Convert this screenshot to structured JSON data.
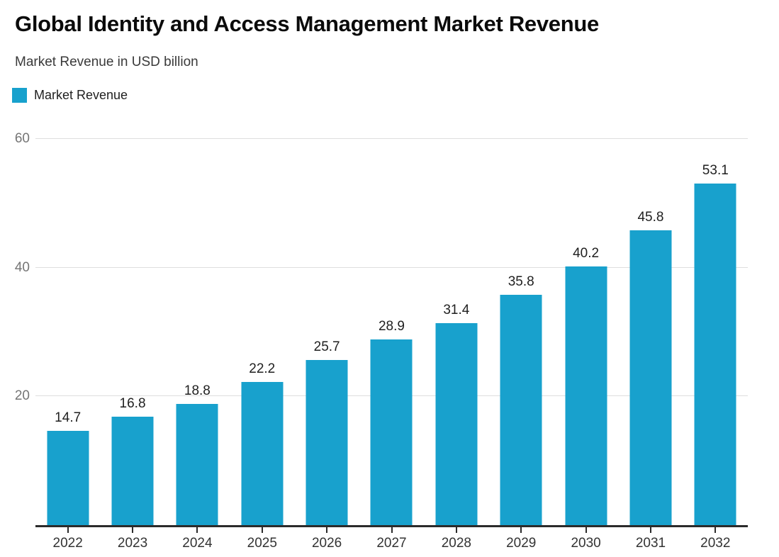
{
  "header": {
    "title": "Global Identity and Access Management Market Revenue",
    "subtitle": "Market Revenue in USD billion"
  },
  "legend": {
    "label": "Market Revenue"
  },
  "colors": {
    "bar": "#18a1cd",
    "gridline": "#dedede",
    "axis_line": "#2b2b2b",
    "y_tick_label": "#757575",
    "x_tick_label": "#333333",
    "value_label": "#1f1f1f",
    "title": "#0b0b0b",
    "subtitle": "#3a3a3a",
    "background": "#ffffff"
  },
  "chart_data": {
    "type": "bar",
    "title": "Global Identity and Access Management Market Revenue",
    "subtitle": "Market Revenue in USD billion",
    "legend_entries": [
      "Market Revenue"
    ],
    "categories": [
      "2022",
      "2023",
      "2024",
      "2025",
      "2026",
      "2027",
      "2028",
      "2029",
      "2030",
      "2031",
      "2032"
    ],
    "values": [
      14.7,
      16.8,
      18.8,
      22.2,
      25.7,
      28.9,
      31.4,
      35.8,
      40.2,
      45.8,
      53.1
    ],
    "value_labels": [
      "14.7",
      "16.8",
      "18.8",
      "22.2",
      "25.7",
      "28.9",
      "31.4",
      "35.8",
      "40.2",
      "45.8",
      "53.1"
    ],
    "xlabel": "",
    "ylabel": "",
    "yticks": [
      20,
      40,
      60
    ],
    "ylim": [
      0,
      64.3
    ],
    "grid": "horizontal",
    "legend_position": "top-left",
    "bar_color": "#18a1cd"
  }
}
